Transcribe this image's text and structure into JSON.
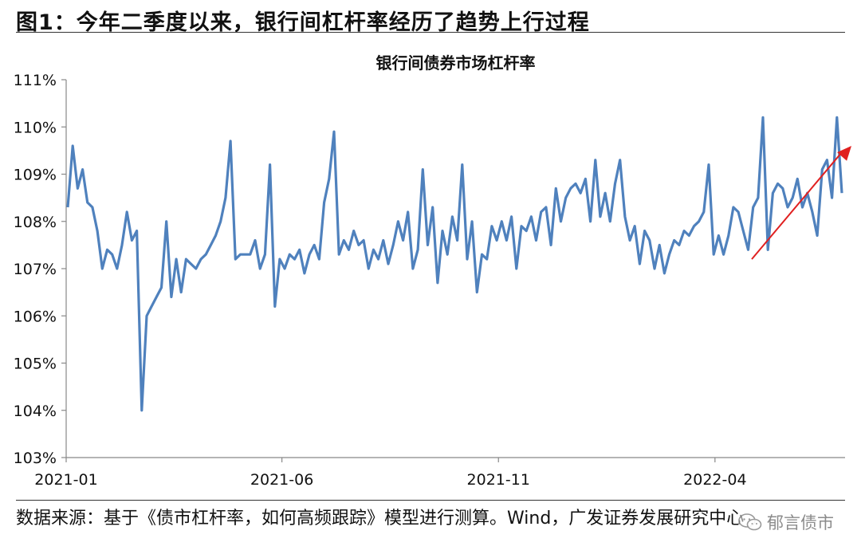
{
  "figure": {
    "title": "图1：今年二季度以来，银行间杠杆率经历了趋势上行过程",
    "source": "数据来源：基于《债市杠杆率，如何高频跟踪》模型进行测算。Wind，广发证券发展研究中心",
    "watermark": "郁言债市"
  },
  "chart_data": {
    "type": "line",
    "title": "银行间债券市场杠杆率",
    "xlabel": "",
    "ylabel": "",
    "ylim": [
      103,
      111
    ],
    "yticks": [
      "103%",
      "104%",
      "105%",
      "106%",
      "107%",
      "108%",
      "109%",
      "110%",
      "111%"
    ],
    "xticks": [
      "2021-01",
      "2021-06",
      "2021-11",
      "2022-04"
    ],
    "grid": false,
    "legend": "none",
    "colors": {
      "series": "#4f81bd",
      "trend_arrow": "#e02020"
    },
    "series": [
      {
        "values": [
          108.3,
          109.6,
          108.7,
          109.1,
          108.4,
          108.3,
          107.8,
          107.0,
          107.4,
          107.3,
          107.0,
          107.5,
          108.2,
          107.6,
          107.8,
          104.0,
          106.0,
          106.2,
          106.4,
          106.6,
          108.0,
          106.4,
          107.2,
          106.5,
          107.2,
          107.1,
          107.0,
          107.2,
          107.3,
          107.5,
          107.7,
          108.0,
          108.5,
          109.7,
          107.2,
          107.3,
          107.3,
          107.3,
          107.6,
          107.0,
          107.3,
          109.2,
          106.2,
          107.2,
          107.0,
          107.3,
          107.2,
          107.4,
          106.9,
          107.3,
          107.5,
          107.2,
          108.4,
          108.9,
          109.9,
          107.3,
          107.6,
          107.4,
          107.8,
          107.5,
          107.6,
          107.0,
          107.4,
          107.2,
          107.6,
          107.1,
          107.5,
          108.0,
          107.6,
          108.2,
          107.0,
          107.4,
          109.1,
          107.5,
          108.3,
          106.7,
          107.8,
          107.3,
          108.1,
          107.6,
          109.2,
          107.2,
          108.0,
          106.5,
          107.3,
          107.2,
          107.9,
          107.6,
          108.0,
          107.6,
          108.1,
          107.0,
          107.9,
          107.8,
          108.1,
          107.6,
          108.2,
          108.3,
          107.5,
          108.7,
          108.0,
          108.5,
          108.7,
          108.8,
          108.6,
          108.9,
          108.0,
          109.3,
          108.1,
          108.6,
          108.0,
          108.8,
          109.3,
          108.1,
          107.6,
          107.9,
          107.1,
          107.8,
          107.6,
          107.0,
          107.5,
          106.9,
          107.3,
          107.6,
          107.5,
          107.8,
          107.7,
          107.9,
          108.0,
          108.2,
          109.2,
          107.3,
          107.7,
          107.3,
          107.7,
          108.3,
          108.2,
          107.8,
          107.4,
          108.3,
          108.5,
          110.2,
          107.4,
          108.6,
          108.8,
          108.7,
          108.3,
          108.5,
          108.9,
          108.3,
          108.6,
          108.2,
          107.7,
          109.1,
          109.3,
          108.5,
          110.2,
          108.6
        ]
      }
    ],
    "trend_arrow": {
      "from": [
        0.87,
        107.2
      ],
      "to": [
        1.0,
        109.6
      ]
    }
  }
}
